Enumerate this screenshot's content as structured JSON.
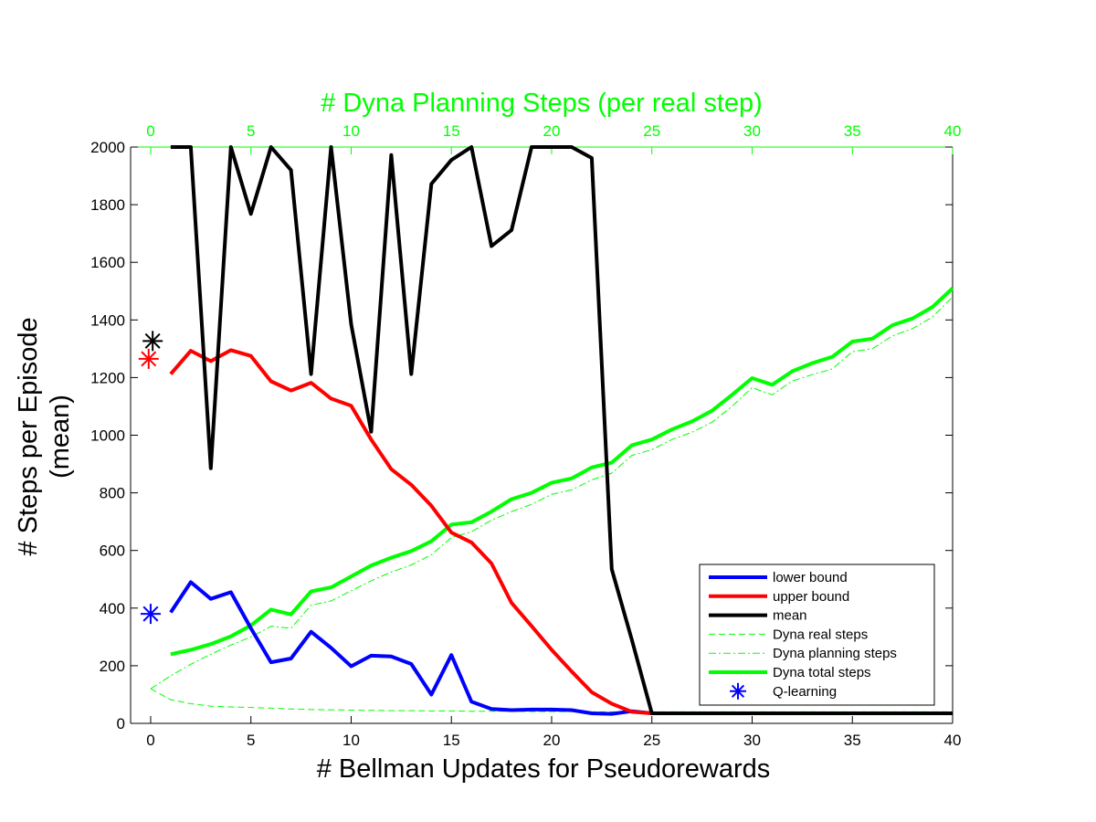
{
  "chart_data": {
    "type": "line",
    "title": "",
    "xlabel": "# Bellman Updates for Pseudorewards",
    "x2label": "# Dyna Planning Steps (per real step)",
    "ylabel_line1": "# Steps per Episode",
    "ylabel_line2": "(mean)",
    "xlim": [
      -1,
      40
    ],
    "ylim": [
      0,
      2000
    ],
    "xticks": [
      0,
      5,
      10,
      15,
      20,
      25,
      30,
      35,
      40
    ],
    "x2ticks": [
      0,
      5,
      10,
      15,
      20,
      25,
      30,
      35,
      40
    ],
    "yticks": [
      0,
      200,
      400,
      600,
      800,
      1000,
      1200,
      1400,
      1600,
      1800,
      2000
    ],
    "grid": false,
    "legend_position": "bottom-right",
    "colors": {
      "lower": "#0000ff",
      "upper": "#ff0000",
      "mean": "#000000",
      "dyna": "#00ff00",
      "secondary_axis": "#00ff00"
    },
    "series": [
      {
        "key": "lower",
        "name": "lower bound",
        "axis": "bottom",
        "style": "solid-thick",
        "x": [
          1,
          2,
          3,
          4,
          5,
          6,
          7,
          8,
          9,
          10,
          11,
          12,
          13,
          14,
          15,
          16,
          17,
          18,
          19,
          20,
          21,
          22,
          23,
          24,
          25,
          26,
          27,
          28,
          29,
          30,
          31,
          32,
          33,
          34,
          35,
          36,
          37,
          38,
          39,
          40
        ],
        "y": [
          385,
          490,
          432,
          455,
          330,
          212,
          225,
          318,
          262,
          198,
          235,
          232,
          206,
          100,
          237,
          75,
          50,
          46,
          48,
          48,
          46,
          35,
          33,
          42,
          35,
          35,
          35,
          35,
          35,
          35,
          35,
          35,
          35,
          35,
          35,
          35,
          35,
          35,
          35,
          35
        ]
      },
      {
        "key": "upper",
        "name": "upper bound",
        "axis": "bottom",
        "style": "solid-thick",
        "x": [
          1,
          2,
          3,
          4,
          5,
          6,
          7,
          8,
          9,
          10,
          11,
          12,
          13,
          14,
          15,
          16,
          17,
          18,
          19,
          20,
          21,
          22,
          23,
          24,
          25,
          26,
          27,
          28,
          29,
          30,
          31,
          32,
          33,
          34,
          35,
          36,
          37,
          38,
          39,
          40
        ],
        "y": [
          1212,
          1293,
          1257,
          1295,
          1275,
          1187,
          1155,
          1182,
          1127,
          1102,
          985,
          882,
          828,
          755,
          662,
          628,
          555,
          418,
          338,
          255,
          180,
          108,
          68,
          40,
          35,
          35,
          35,
          35,
          35,
          35,
          35,
          35,
          35,
          35,
          35,
          35,
          35,
          35,
          35,
          35
        ]
      },
      {
        "key": "mean",
        "name": "mean",
        "axis": "bottom",
        "style": "solid-thick",
        "x": [
          1,
          2,
          3,
          4,
          5,
          6,
          7,
          8,
          9,
          10,
          11,
          12,
          13,
          14,
          15,
          16,
          17,
          18,
          19,
          20,
          21,
          22,
          23,
          24,
          25,
          26,
          27,
          28,
          29,
          30,
          31,
          32,
          33,
          34,
          35,
          36,
          37,
          38,
          39,
          40
        ],
        "y": [
          2000,
          2000,
          885,
          2000,
          1768,
          2000,
          1920,
          1212,
          2000,
          1385,
          1012,
          1972,
          1212,
          1872,
          1955,
          2000,
          1656,
          1712,
          2000,
          2000,
          2000,
          1962,
          535,
          290,
          35,
          35,
          35,
          35,
          35,
          35,
          35,
          35,
          35,
          35,
          35,
          35,
          35,
          35,
          35,
          35
        ]
      },
      {
        "key": "dyna_real",
        "name": "Dyna real steps",
        "axis": "top",
        "style": "dashed-thin",
        "x": [
          0,
          1,
          2,
          3,
          4,
          5,
          6,
          7,
          8,
          9,
          10,
          11,
          12,
          13,
          14,
          15,
          16,
          17,
          18,
          19,
          20,
          21,
          22,
          23,
          24,
          25,
          26,
          27,
          28,
          29,
          30,
          31,
          32,
          33,
          34,
          35,
          36,
          37,
          38,
          39,
          40
        ],
        "y": [
          120,
          82,
          68,
          60,
          57,
          55,
          53,
          50,
          48,
          47,
          46,
          45,
          44,
          44,
          43,
          43,
          42,
          42,
          42,
          41,
          41,
          41,
          40,
          40,
          40,
          40,
          40,
          40,
          40,
          40,
          40,
          40,
          40,
          40,
          40,
          40,
          40,
          40,
          40,
          40,
          40
        ]
      },
      {
        "key": "dyna_planning",
        "name": "Dyna planning steps",
        "axis": "top",
        "style": "dashdot-thin",
        "x": [
          0,
          1,
          2,
          3,
          4,
          5,
          6,
          7,
          8,
          9,
          10,
          11,
          12,
          13,
          14,
          15,
          16,
          17,
          18,
          19,
          20,
          21,
          22,
          23,
          24,
          25,
          26,
          27,
          28,
          29,
          30,
          31,
          32,
          33,
          34,
          35,
          36,
          37,
          38,
          39,
          40
        ],
        "y": [
          120,
          165,
          205,
          240,
          272,
          300,
          337,
          330,
          410,
          425,
          460,
          495,
          525,
          550,
          585,
          645,
          665,
          705,
          735,
          760,
          795,
          810,
          845,
          868,
          930,
          950,
          985,
          1010,
          1045,
          1100,
          1165,
          1140,
          1188,
          1210,
          1230,
          1290,
          1300,
          1345,
          1370,
          1410,
          1480
        ]
      },
      {
        "key": "dyna_total",
        "name": "Dyna total steps",
        "axis": "top",
        "style": "solid-thick",
        "x": [
          1,
          2,
          3,
          4,
          5,
          6,
          7,
          8,
          9,
          10,
          11,
          12,
          13,
          14,
          15,
          16,
          17,
          18,
          19,
          20,
          21,
          22,
          23,
          24,
          25,
          26,
          27,
          28,
          29,
          30,
          31,
          32,
          33,
          34,
          35,
          36,
          37,
          38,
          39,
          40
        ],
        "y": [
          240,
          255,
          275,
          302,
          340,
          395,
          378,
          458,
          472,
          510,
          548,
          575,
          598,
          632,
          690,
          698,
          735,
          778,
          800,
          835,
          850,
          888,
          905,
          965,
          985,
          1020,
          1048,
          1085,
          1140,
          1198,
          1175,
          1222,
          1250,
          1272,
          1325,
          1335,
          1382,
          1405,
          1445,
          1510
        ]
      }
    ],
    "markers": [
      {
        "key": "qlearning_mean",
        "name": "",
        "x": 0.1,
        "y": 1327,
        "color": "#000000"
      },
      {
        "key": "qlearning_upper",
        "name": "",
        "x": -0.1,
        "y": 1265,
        "color": "#ff0000"
      },
      {
        "key": "qlearning_lower",
        "name": "Q-learning",
        "x": 0.0,
        "y": 380,
        "color": "#0000ff"
      }
    ],
    "legend": [
      {
        "label": "lower bound",
        "color": "#0000ff",
        "style": "solid-thick"
      },
      {
        "label": "upper bound",
        "color": "#ff0000",
        "style": "solid-thick"
      },
      {
        "label": "mean",
        "color": "#000000",
        "style": "solid-thick"
      },
      {
        "label": "Dyna real steps",
        "color": "#00ff00",
        "style": "dashed-thin"
      },
      {
        "label": "Dyna planning steps",
        "color": "#00ff00",
        "style": "dashdot-thin"
      },
      {
        "label": "Dyna total steps",
        "color": "#00ff00",
        "style": "solid-thick"
      },
      {
        "label": "Q-learning",
        "color": "#0000ff",
        "style": "asterisk"
      }
    ]
  }
}
